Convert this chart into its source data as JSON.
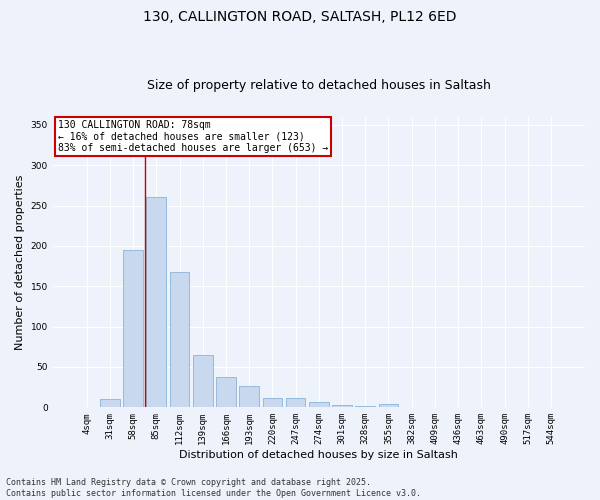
{
  "title_line1": "130, CALLINGTON ROAD, SALTASH, PL12 6ED",
  "title_line2": "Size of property relative to detached houses in Saltash",
  "xlabel": "Distribution of detached houses by size in Saltash",
  "ylabel": "Number of detached properties",
  "categories": [
    "4sqm",
    "31sqm",
    "58sqm",
    "85sqm",
    "112sqm",
    "139sqm",
    "166sqm",
    "193sqm",
    "220sqm",
    "247sqm",
    "274sqm",
    "301sqm",
    "328sqm",
    "355sqm",
    "382sqm",
    "409sqm",
    "436sqm",
    "463sqm",
    "490sqm",
    "517sqm",
    "544sqm"
  ],
  "values": [
    1,
    10,
    195,
    260,
    168,
    65,
    38,
    27,
    12,
    12,
    6,
    3,
    2,
    4,
    1,
    0,
    1,
    0,
    0,
    0,
    1
  ],
  "bar_color": "#c8d8ee",
  "bar_edge_color": "#8ab4d8",
  "background_color": "#eef2fb",
  "grid_color": "#ffffff",
  "vline_color": "#cc0000",
  "vline_x": 2.5,
  "annotation_text": "130 CALLINGTON ROAD: 78sqm\n← 16% of detached houses are smaller (123)\n83% of semi-detached houses are larger (653) →",
  "annotation_box_color": "#ffffff",
  "annotation_box_edge": "#cc0000",
  "footer_line1": "Contains HM Land Registry data © Crown copyright and database right 2025.",
  "footer_line2": "Contains public sector information licensed under the Open Government Licence v3.0.",
  "ylim": [
    0,
    360
  ],
  "yticks": [
    0,
    50,
    100,
    150,
    200,
    250,
    300,
    350
  ],
  "title_fontsize": 10,
  "subtitle_fontsize": 9,
  "label_fontsize": 8,
  "tick_fontsize": 6.5,
  "annotation_fontsize": 7,
  "footer_fontsize": 6
}
